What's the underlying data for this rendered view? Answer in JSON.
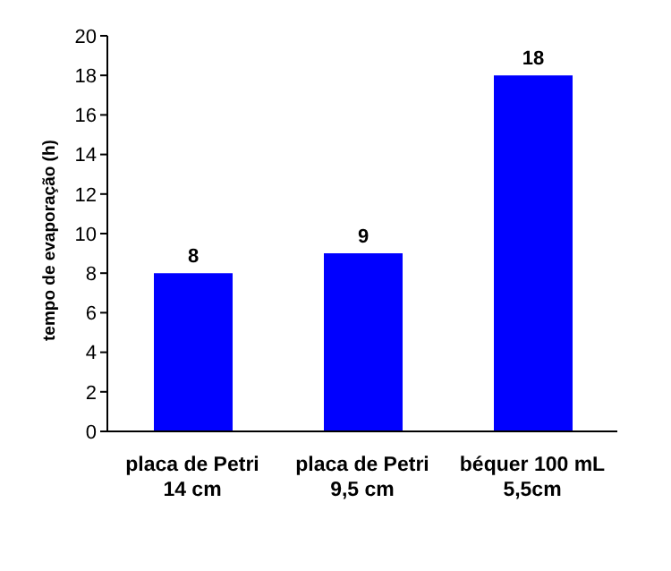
{
  "chart_data": {
    "type": "bar",
    "ylabel": "tempo de evaporação (h)",
    "categories": [
      "placa de Petri\n14 cm",
      "placa de Petri\n9,5 cm",
      "béquer 100 mL\n5,5cm"
    ],
    "values": [
      8,
      9,
      18
    ],
    "color": "#0000ff",
    "ylim": [
      0,
      20
    ],
    "yticks": [
      0,
      2,
      4,
      6,
      8,
      10,
      12,
      14,
      16,
      18,
      20
    ],
    "grid": false,
    "data_labels": true
  }
}
